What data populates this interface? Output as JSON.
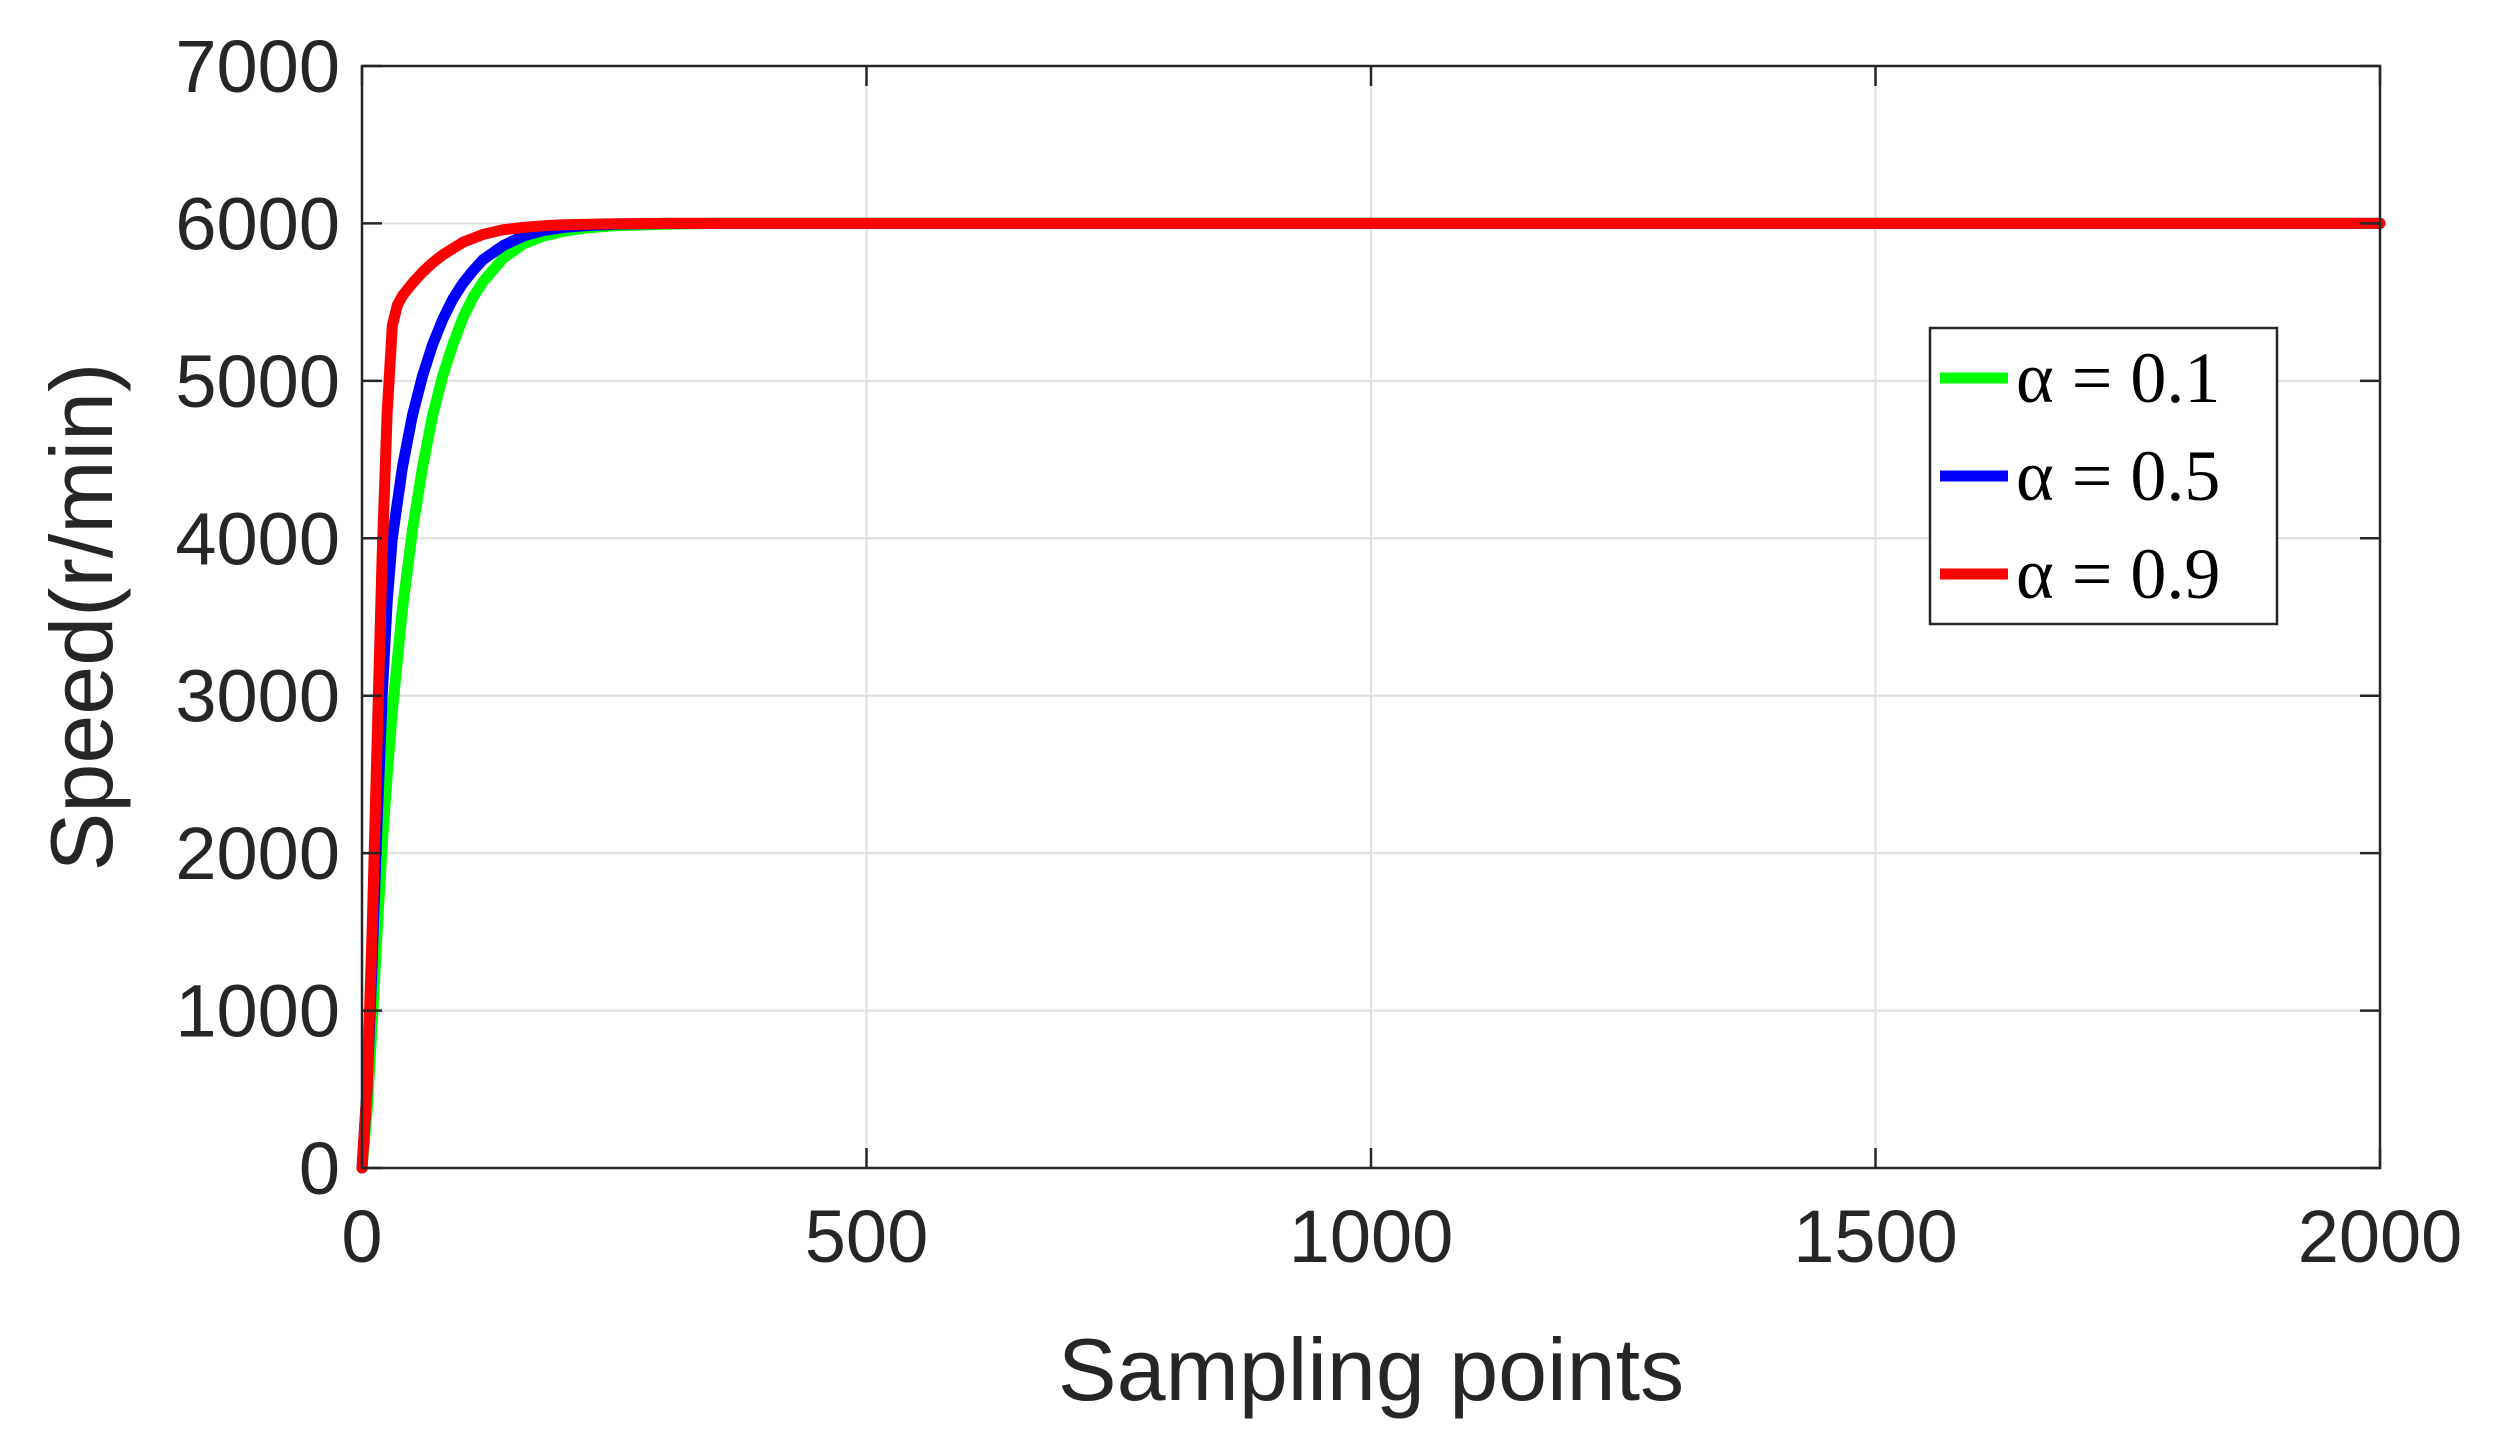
{
  "chart_data": {
    "type": "line",
    "title": "",
    "xlabel": "Sampling points",
    "ylabel": "Speed(r/min)",
    "xlim": [
      0,
      2000
    ],
    "ylim": [
      0,
      7000
    ],
    "xticks": [
      0,
      500,
      1000,
      1500,
      2000
    ],
    "yticks": [
      0,
      1000,
      2000,
      3000,
      4000,
      5000,
      6000,
      7000
    ],
    "grid": true,
    "legend_position": "top-right",
    "series": [
      {
        "name": "α = 0.1",
        "color": "#00ff00",
        "x": [
          0,
          5,
          10,
          15,
          20,
          25,
          30,
          40,
          50,
          60,
          70,
          80,
          90,
          100,
          110,
          120,
          140,
          160,
          180,
          200,
          220,
          250,
          300,
          350,
          400,
          500,
          1000,
          1500,
          2000
        ],
        "y": [
          0,
          350,
          900,
          1500,
          2050,
          2500,
          2900,
          3550,
          4050,
          4450,
          4780,
          5030,
          5230,
          5400,
          5530,
          5630,
          5780,
          5870,
          5920,
          5950,
          5970,
          5985,
          5995,
          6000,
          6000,
          6000,
          6000,
          6000,
          6000
        ]
      },
      {
        "name": "α = 0.5",
        "color": "#0000ff",
        "x": [
          0,
          5,
          10,
          15,
          20,
          25,
          30,
          40,
          50,
          60,
          70,
          80,
          90,
          100,
          110,
          120,
          140,
          160,
          180,
          200,
          220,
          250,
          300,
          350,
          400,
          500,
          1000,
          1500,
          2000
        ],
        "y": [
          0,
          500,
          1300,
          2200,
          3000,
          3600,
          4000,
          4450,
          4780,
          5030,
          5230,
          5390,
          5520,
          5620,
          5700,
          5770,
          5860,
          5920,
          5955,
          5975,
          5985,
          5995,
          6000,
          6000,
          6000,
          6000,
          6000,
          6000,
          6000
        ]
      },
      {
        "name": "α = 0.9",
        "color": "#ff0000",
        "x": [
          0,
          5,
          10,
          15,
          20,
          25,
          30,
          35,
          40,
          45,
          50,
          60,
          70,
          80,
          100,
          120,
          140,
          160,
          180,
          200,
          250,
          300,
          350,
          400,
          500,
          1000,
          1500,
          2000
        ],
        "y": [
          0,
          500,
          1500,
          2700,
          3900,
          4800,
          5350,
          5480,
          5540,
          5580,
          5620,
          5690,
          5750,
          5800,
          5880,
          5930,
          5960,
          5975,
          5985,
          5992,
          5998,
          6000,
          6000,
          6000,
          6000,
          6000,
          6000,
          6000
        ]
      }
    ]
  }
}
